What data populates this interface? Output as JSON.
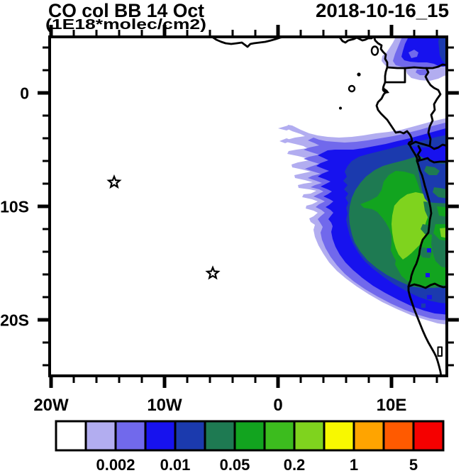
{
  "title": {
    "main": "CO col BB 14 Oct",
    "units": "(1E18*molec/cm2)",
    "timestamp": "2018-10-16_15"
  },
  "chart_data": {
    "type": "heatmap",
    "title": "CO col BB 14 Oct",
    "units": "1E18*molec/cm2",
    "timestamp": "2018-10-16_15",
    "region": "Tropical/South Atlantic and western Africa",
    "lon_range_deg_east": [
      -20,
      15
    ],
    "lat_range_deg_north": [
      -25,
      5
    ],
    "x_ticks": [
      {
        "lon": -20,
        "label": "20W"
      },
      {
        "lon": -10,
        "label": "10W"
      },
      {
        "lon": 0,
        "label": "0"
      },
      {
        "lon": 10,
        "label": "10E"
      }
    ],
    "y_ticks": [
      {
        "lat": 0,
        "label": "0"
      },
      {
        "lat": -10,
        "label": "10S"
      },
      {
        "lat": -20,
        "label": "20S"
      }
    ],
    "minor_tick_step_deg": 2,
    "colorbar": {
      "levels": [
        0.001,
        0.002,
        0.005,
        0.01,
        0.02,
        0.05,
        0.1,
        0.2,
        0.5,
        1,
        2,
        5
      ],
      "boundary_labels": [
        "",
        "0.002",
        "",
        "0.01",
        "",
        "0.05",
        "",
        "0.2",
        "",
        "1",
        "",
        "5"
      ],
      "colors": [
        "#ffffff",
        "#b2adf0",
        "#7169ec",
        "#1712ee",
        "#1b3aae",
        "#1e7a52",
        "#12a41f",
        "#3cbc1e",
        "#7fd31e",
        "#f8f800",
        "#ffa400",
        "#ff5a00",
        "#f50000"
      ]
    },
    "markers": [
      {
        "type": "star",
        "lon": -14.44,
        "lat": -7.88
      },
      {
        "type": "star",
        "lon": -5.75,
        "lat": -15.9
      }
    ],
    "legend_position": "bottom",
    "grid": false
  },
  "colors": {
    "line": "#000000",
    "background": "#ffffff"
  }
}
